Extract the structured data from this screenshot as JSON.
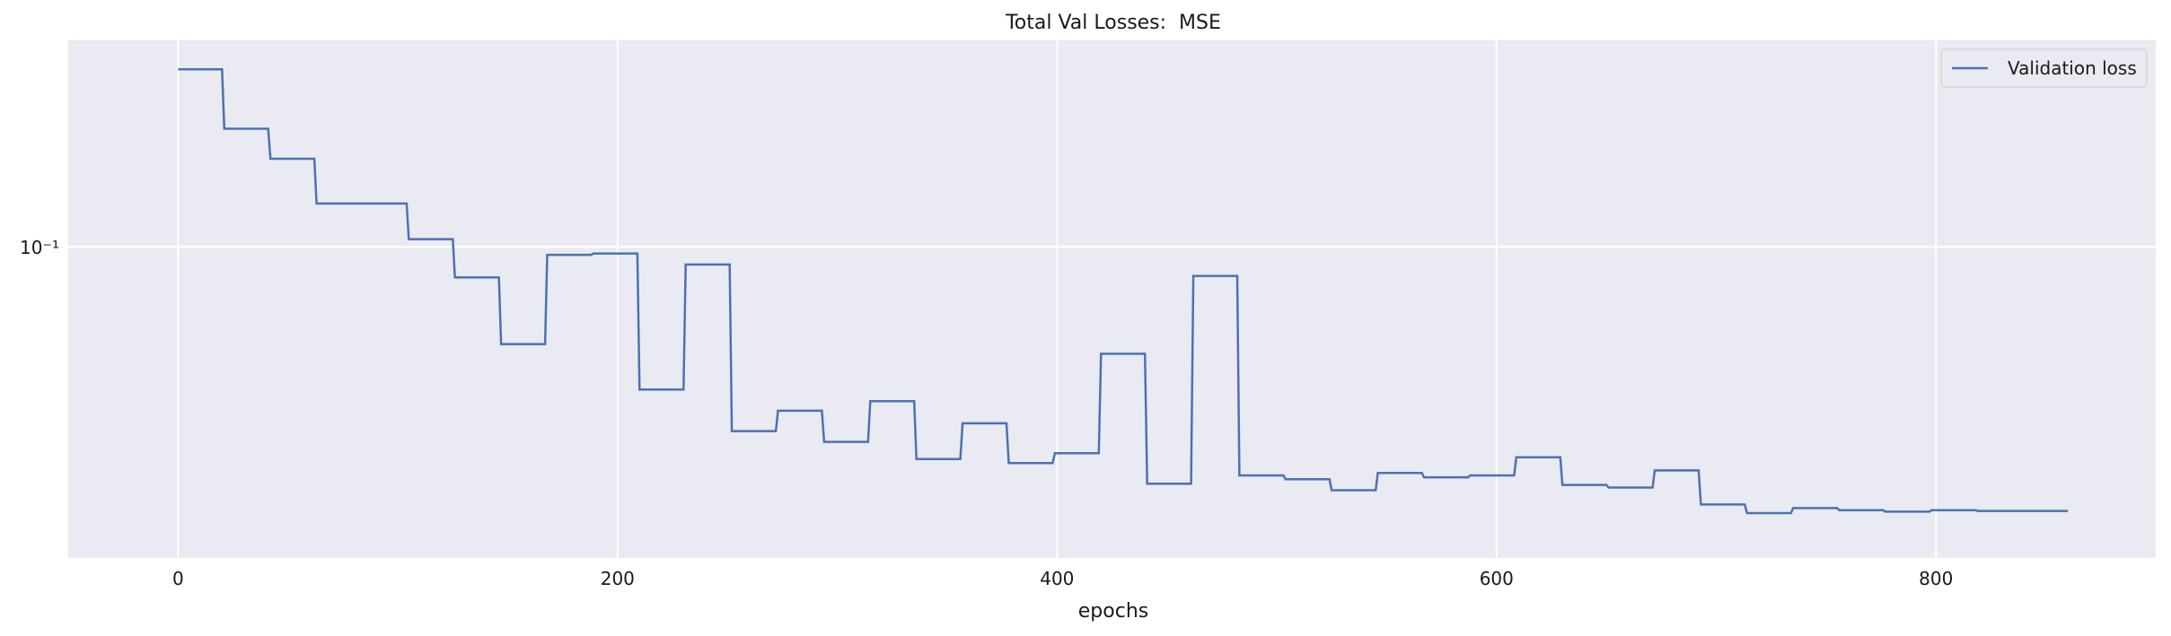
{
  "chart_data": {
    "type": "line",
    "title": "Total Val Losses:  MSE",
    "xlabel": "epochs",
    "ylabel": "",
    "yscale": "log",
    "xlim": [
      -50,
      900
    ],
    "ylim": [
      0.0305,
      0.22
    ],
    "xticks": [
      0,
      200,
      400,
      600,
      800
    ],
    "xtick_labels": [
      "0",
      "200",
      "400",
      "600",
      "800"
    ],
    "yticks": [
      0.1
    ],
    "ytick_labels": [
      "10⁻¹"
    ],
    "grid": true,
    "legend_position": "top-right",
    "series": [
      {
        "name": "Validation loss",
        "color": "#4c72b0",
        "x": [
          0,
          20,
          21,
          41,
          42,
          62,
          63,
          104,
          105,
          125,
          126,
          146,
          147,
          167,
          168,
          188,
          189,
          209,
          210,
          230,
          231,
          251,
          252,
          272,
          273,
          293,
          294,
          314,
          315,
          335,
          336,
          356,
          357,
          377,
          378,
          398,
          399,
          419,
          420,
          440,
          441,
          461,
          462,
          482,
          483,
          503,
          504,
          524,
          525,
          545,
          546,
          566,
          567,
          587,
          588,
          608,
          609,
          629,
          630,
          650,
          651,
          671,
          672,
          692,
          693,
          713,
          714,
          734,
          735,
          755,
          756,
          776,
          777,
          797,
          798,
          818,
          819,
          839,
          840,
          860
        ],
        "y": [
          0.197,
          0.197,
          0.157,
          0.157,
          0.14,
          0.14,
          0.118,
          0.118,
          0.103,
          0.103,
          0.089,
          0.089,
          0.069,
          0.069,
          0.097,
          0.097,
          0.0975,
          0.0975,
          0.058,
          0.058,
          0.0935,
          0.0935,
          0.0495,
          0.0495,
          0.0535,
          0.0535,
          0.0475,
          0.0475,
          0.0555,
          0.0555,
          0.0445,
          0.0445,
          0.051,
          0.051,
          0.0438,
          0.0438,
          0.0455,
          0.0455,
          0.0665,
          0.0665,
          0.0405,
          0.0405,
          0.0895,
          0.0895,
          0.0418,
          0.0418,
          0.0412,
          0.0412,
          0.0395,
          0.0395,
          0.0422,
          0.0422,
          0.0415,
          0.0415,
          0.0418,
          0.0418,
          0.0448,
          0.0448,
          0.0403,
          0.0403,
          0.0399,
          0.0399,
          0.0426,
          0.0426,
          0.0374,
          0.0374,
          0.0362,
          0.0362,
          0.0369,
          0.0369,
          0.0366,
          0.0366,
          0.0364,
          0.0364,
          0.0366,
          0.0366,
          0.0365,
          0.0365,
          0.0365,
          0.0365
        ]
      }
    ]
  }
}
